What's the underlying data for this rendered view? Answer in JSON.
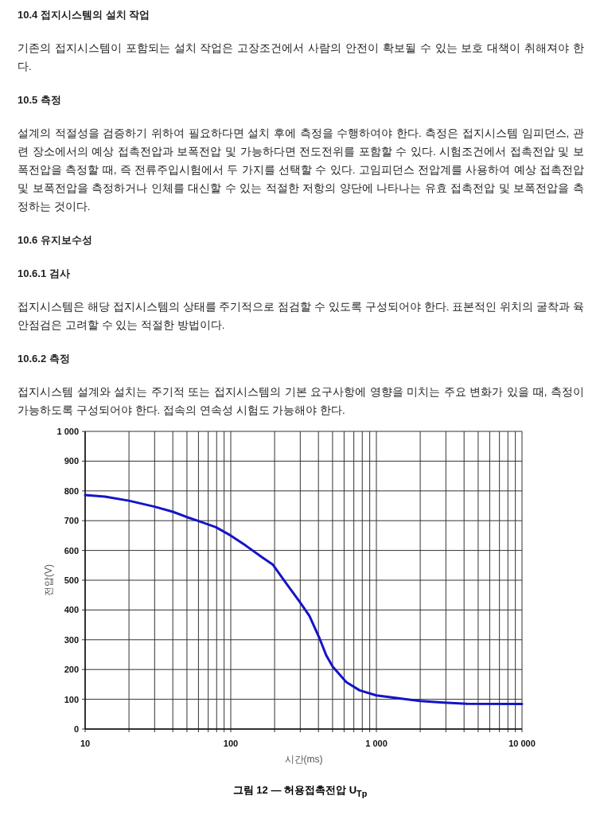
{
  "chart_data": {
    "type": "line",
    "title": "그림 12 — 허용접촉전압 U$_{Tp}$",
    "xlabel": "시간(ms)",
    "ylabel": "전압(V)",
    "annotations": [
      "10.4 접지시스템의 설치 작업",
      "기존의 접지시스템이 포함되는 설치 작업은 고장조건에서 사람의 안전이 확보될 수 있는 보호 대책이 취해져야 한다.",
      "10.5 측정",
      "설계의 적절성을 검증하기 위하여 필요하다면 설치 후에 측정을 수행하여야 한다. 측정은 접지시스템 임피던스, 관련 장소에서의 예상 접촉전압과 보폭전압 및 가능하다면 전도전위를 포함할 수 있다. 시험조건에서 접촉전압 및 보폭전압을 측정할 때, 즉 전류주입시험에서 두 가지를 선택할 수 있다. 고임피던스 전압계를 사용하여 예상 접촉전압 및 보폭전압을 측정하거나 인체를 대신할 수 있는 적절한 저항의 양단에 나타나는 유효 접촉전압 및 보폭전압을 측정하는 것이다.",
      "10.6 유지보수성",
      "10.6.1 검사",
      "접지시스템은 해당 접지시스템의 상태를 주기적으로 점검할 수 있도록 구성되어야 한다. 표본적인 위치의 굴착과 육안점검은 고려할 수 있는 적절한 방법이다.",
      "10.6.2 측정",
      "접지시스템 설계와 설치는 주기적 또는 접지시스템의 기본 요구사항에 영향을 미치는 주요 변화가 있을 때, 측정이 가능하도록 구성되어야 한다. 접속의 연속성 시험도 가능해야 한다."
    ],
    "x": [
      10,
      13.7,
      20,
      30,
      40,
      50,
      60,
      79,
      100,
      127,
      165,
      194,
      239,
      296,
      347,
      406,
      452,
      502,
      621,
      767,
      1000,
      1449,
      2000,
      2885,
      4170,
      10000
    ],
    "series": [
      {
        "color": "#1414c8",
        "values": [
          786,
          781,
          767,
          747,
          730,
          712,
          699,
          678,
          650,
          616,
          576,
          553,
          491,
          429,
          380,
          306,
          248,
          209,
          158,
          130,
          113,
          103,
          94,
          89,
          85,
          84
        ]
      }
    ],
    "log": "x",
    "xlim": [
      10,
      10000
    ],
    "xticks": [
      10,
      {
        "value": 20,
        "label": null
      },
      {
        "value": 30,
        "label": null
      },
      {
        "value": 40,
        "label": null
      },
      {
        "value": 50,
        "label": null
      },
      {
        "value": 60,
        "label": null
      },
      {
        "value": 70,
        "label": null
      },
      {
        "value": 80,
        "label": null
      },
      {
        "value": 90,
        "label": null
      },
      100,
      {
        "value": 200,
        "label": null
      },
      {
        "value": 300,
        "label": null
      },
      {
        "value": 400,
        "label": null
      },
      {
        "value": 500,
        "label": null
      },
      {
        "value": 600,
        "label": null
      },
      {
        "value": 700,
        "label": null
      },
      {
        "value": 800,
        "label": null
      },
      {
        "value": 900,
        "label": null
      },
      {
        "value": 1000,
        "label": "1 000"
      },
      {
        "value": 2000,
        "label": null
      },
      {
        "value": 3000,
        "label": null
      },
      {
        "value": 4000,
        "label": null
      },
      {
        "value": 5000,
        "label": null
      },
      {
        "value": 6000,
        "label": null
      },
      {
        "value": 7000,
        "label": null
      },
      {
        "value": 8000,
        "label": null
      },
      {
        "value": 9000,
        "label": null
      },
      {
        "value": 10000,
        "label": "10 000"
      }
    ],
    "ylim": [
      0,
      1000
    ],
    "yticks": [
      0,
      100,
      200,
      300,
      400,
      500,
      600,
      700,
      800,
      900,
      {
        "value": 1000,
        "label": "1 000"
      }
    ],
    "grid": true,
    "marker": "none",
    "line_style": "solid"
  }
}
